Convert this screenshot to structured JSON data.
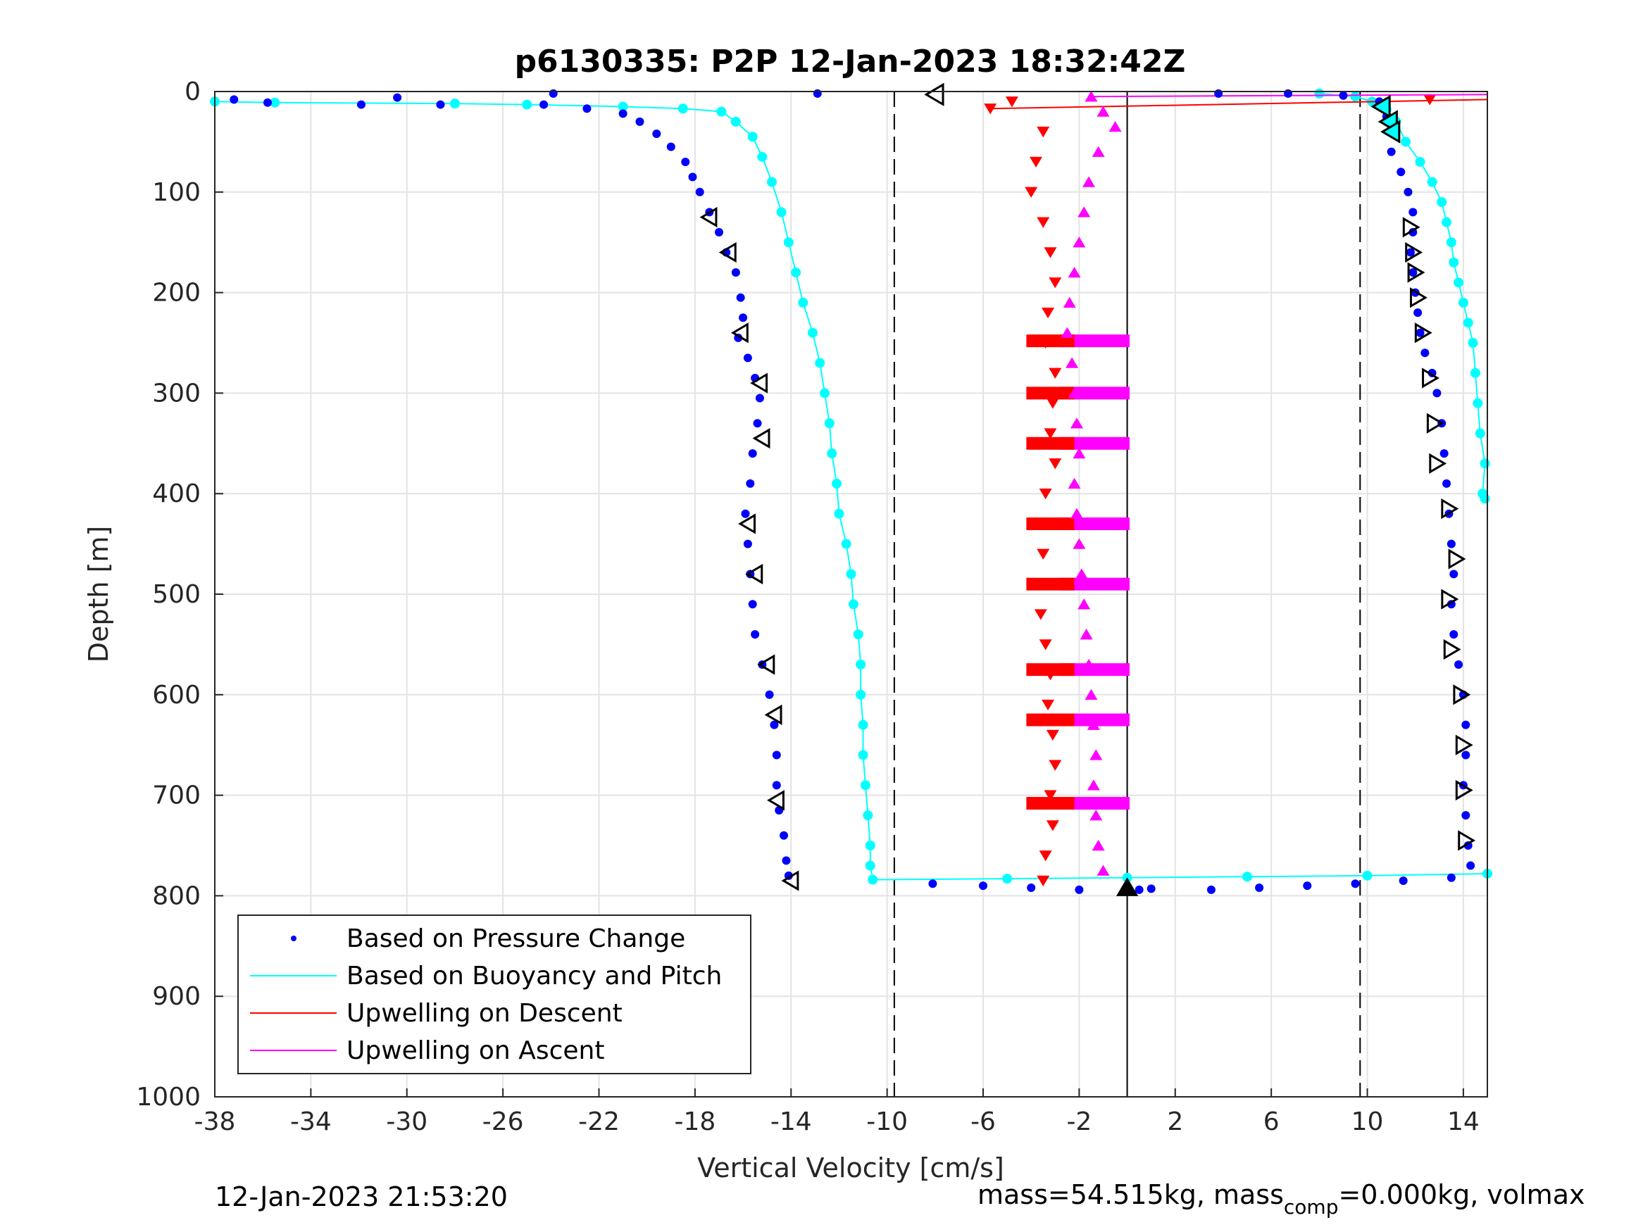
{
  "chart_data": {
    "type": "scatter",
    "title": "p6130335: P2P 12-Jan-2023 18:32:42Z",
    "xlabel": "Vertical Velocity [cm/s]",
    "ylabel": "Depth [m]",
    "xlim": [
      -38,
      15
    ],
    "ylim": [
      0,
      1000
    ],
    "y_reversed": true,
    "grid": true,
    "x_ticks": [
      -38,
      -34,
      -30,
      -26,
      -22,
      -18,
      -14,
      -10,
      -6,
      -2,
      2,
      6,
      10,
      14
    ],
    "x_tick_labels": [
      "-38",
      "-34",
      "-30",
      "-26",
      "-22",
      "-18",
      "-14",
      "-10",
      "-6",
      "-2",
      "2",
      "6",
      "10",
      "14"
    ],
    "y_ticks": [
      0,
      100,
      200,
      300,
      400,
      500,
      600,
      700,
      800,
      900,
      1000
    ],
    "y_tick_labels": [
      "0",
      "100",
      "200",
      "300",
      "400",
      "500",
      "600",
      "700",
      "800",
      "900",
      "1000"
    ],
    "reference_lines": {
      "dashed_x": [
        -9.7,
        9.7
      ],
      "solid_x": [
        0
      ]
    },
    "legend_position": "bottom-left",
    "series": [
      {
        "name": "Based on Pressure Change",
        "color": "#0000ff",
        "marker": "dot",
        "points": [
          [
            -37.2,
            8
          ],
          [
            -35.8,
            11
          ],
          [
            -31.9,
            13
          ],
          [
            -30.4,
            6
          ],
          [
            -28.6,
            13
          ],
          [
            -24.3,
            13
          ],
          [
            -23.9,
            2
          ],
          [
            -22.5,
            17
          ],
          [
            -21.0,
            22
          ],
          [
            -20.3,
            30
          ],
          [
            -19.6,
            42
          ],
          [
            -19.0,
            55
          ],
          [
            -18.4,
            70
          ],
          [
            -18.1,
            85
          ],
          [
            -17.8,
            100
          ],
          [
            -17.4,
            120
          ],
          [
            -17.0,
            140
          ],
          [
            -16.7,
            160
          ],
          [
            -16.3,
            180
          ],
          [
            -16.1,
            205
          ],
          [
            -16.0,
            225
          ],
          [
            -16.2,
            245
          ],
          [
            -15.8,
            265
          ],
          [
            -15.5,
            285
          ],
          [
            -15.3,
            305
          ],
          [
            -15.4,
            330
          ],
          [
            -15.6,
            360
          ],
          [
            -15.7,
            390
          ],
          [
            -15.9,
            420
          ],
          [
            -15.8,
            450
          ],
          [
            -15.7,
            480
          ],
          [
            -15.6,
            510
          ],
          [
            -15.5,
            540
          ],
          [
            -15.2,
            570
          ],
          [
            -14.9,
            600
          ],
          [
            -14.7,
            630
          ],
          [
            -14.6,
            660
          ],
          [
            -14.6,
            690
          ],
          [
            -14.5,
            715
          ],
          [
            -14.3,
            740
          ],
          [
            -14.2,
            765
          ],
          [
            -14.1,
            780
          ],
          [
            -12.9,
            2
          ],
          [
            -8.1,
            788
          ],
          [
            -6.0,
            790
          ],
          [
            -4.0,
            792
          ],
          [
            -2.0,
            794
          ],
          [
            0.5,
            794
          ],
          [
            1.0,
            793
          ],
          [
            3.5,
            794
          ],
          [
            5.5,
            792
          ],
          [
            7.5,
            790
          ],
          [
            9.5,
            788
          ],
          [
            11.5,
            785
          ],
          [
            13.5,
            782
          ],
          [
            3.8,
            2
          ],
          [
            6.7,
            2
          ],
          [
            9.0,
            4
          ],
          [
            10.5,
            10
          ],
          [
            10.8,
            25
          ],
          [
            10.9,
            40
          ],
          [
            11.0,
            60
          ],
          [
            11.4,
            80
          ],
          [
            11.7,
            100
          ],
          [
            11.9,
            120
          ],
          [
            11.9,
            140
          ],
          [
            11.8,
            160
          ],
          [
            11.9,
            180
          ],
          [
            12.0,
            200
          ],
          [
            12.1,
            220
          ],
          [
            12.2,
            240
          ],
          [
            12.4,
            260
          ],
          [
            12.7,
            280
          ],
          [
            12.9,
            300
          ],
          [
            13.1,
            330
          ],
          [
            13.2,
            360
          ],
          [
            13.3,
            390
          ],
          [
            13.4,
            420
          ],
          [
            13.5,
            450
          ],
          [
            13.6,
            480
          ],
          [
            13.5,
            510
          ],
          [
            13.6,
            540
          ],
          [
            13.8,
            570
          ],
          [
            14.0,
            600
          ],
          [
            14.1,
            630
          ],
          [
            14.1,
            660
          ],
          [
            14.0,
            690
          ],
          [
            14.1,
            720
          ],
          [
            14.2,
            750
          ],
          [
            14.3,
            770
          ]
        ]
      },
      {
        "name": "Based on Buoyancy and Pitch",
        "color": "#00ffff",
        "marker": "dot-line",
        "points": [
          [
            -38.0,
            10
          ],
          [
            -35.5,
            11
          ],
          [
            -28.0,
            12
          ],
          [
            -25.0,
            13
          ],
          [
            -21.0,
            15
          ],
          [
            -18.5,
            17
          ],
          [
            -16.9,
            20
          ],
          [
            -16.3,
            30
          ],
          [
            -15.6,
            45
          ],
          [
            -15.2,
            65
          ],
          [
            -14.8,
            90
          ],
          [
            -14.4,
            120
          ],
          [
            -14.1,
            150
          ],
          [
            -13.8,
            180
          ],
          [
            -13.5,
            210
          ],
          [
            -13.1,
            240
          ],
          [
            -12.8,
            270
          ],
          [
            -12.6,
            300
          ],
          [
            -12.4,
            330
          ],
          [
            -12.3,
            360
          ],
          [
            -12.1,
            390
          ],
          [
            -12.0,
            420
          ],
          [
            -11.7,
            450
          ],
          [
            -11.5,
            480
          ],
          [
            -11.4,
            510
          ],
          [
            -11.2,
            540
          ],
          [
            -11.1,
            570
          ],
          [
            -11.1,
            600
          ],
          [
            -11.0,
            630
          ],
          [
            -11.0,
            660
          ],
          [
            -10.9,
            690
          ],
          [
            -10.8,
            720
          ],
          [
            -10.7,
            750
          ],
          [
            -10.7,
            770
          ],
          [
            -10.6,
            784
          ],
          [
            -5.0,
            783
          ],
          [
            0.0,
            782
          ],
          [
            5.0,
            781
          ],
          [
            10.0,
            780
          ],
          [
            15.0,
            778
          ],
          [
            8.0,
            2
          ],
          [
            9.5,
            5
          ],
          [
            10.2,
            10
          ],
          [
            10.8,
            18
          ],
          [
            11.2,
            30
          ],
          [
            11.6,
            50
          ],
          [
            12.2,
            70
          ],
          [
            12.7,
            90
          ],
          [
            13.1,
            110
          ],
          [
            13.3,
            130
          ],
          [
            13.5,
            150
          ],
          [
            13.6,
            170
          ],
          [
            13.8,
            190
          ],
          [
            14.0,
            210
          ],
          [
            14.2,
            230
          ],
          [
            14.4,
            250
          ],
          [
            14.5,
            280
          ],
          [
            14.6,
            310
          ],
          [
            14.7,
            340
          ],
          [
            14.9,
            370
          ],
          [
            14.8,
            400
          ],
          [
            14.9,
            405
          ]
        ]
      },
      {
        "name": "Upwelling on Descent",
        "color": "#ff0000",
        "marker": "triangle-down",
        "points": [
          [
            -5.7,
            17
          ],
          [
            -4.8,
            10
          ],
          [
            -3.5,
            40
          ],
          [
            -3.8,
            70
          ],
          [
            -4.0,
            100
          ],
          [
            -3.5,
            130
          ],
          [
            -3.2,
            160
          ],
          [
            -3.0,
            190
          ],
          [
            -3.3,
            220
          ],
          [
            -3.4,
            250
          ],
          [
            -3.0,
            280
          ],
          [
            -3.1,
            310
          ],
          [
            -3.2,
            340
          ],
          [
            -3.0,
            370
          ],
          [
            -3.4,
            400
          ],
          [
            -3.6,
            430
          ],
          [
            -3.5,
            460
          ],
          [
            -3.8,
            490
          ],
          [
            -3.6,
            520
          ],
          [
            -3.4,
            550
          ],
          [
            -3.2,
            580
          ],
          [
            -3.3,
            610
          ],
          [
            -3.1,
            640
          ],
          [
            -3.0,
            670
          ],
          [
            -3.2,
            700
          ],
          [
            -3.1,
            730
          ],
          [
            -3.4,
            760
          ],
          [
            -3.5,
            785
          ],
          [
            12.6,
            8
          ]
        ]
      },
      {
        "name": "Upwelling on Ascent",
        "color": "#ff00ff",
        "marker": "triangle-up",
        "points": [
          [
            -1.5,
            5
          ],
          [
            -1.0,
            20
          ],
          [
            -0.5,
            35
          ],
          [
            -1.2,
            60
          ],
          [
            -1.6,
            90
          ],
          [
            -1.8,
            120
          ],
          [
            -2.0,
            150
          ],
          [
            -2.2,
            180
          ],
          [
            -2.4,
            210
          ],
          [
            -2.5,
            240
          ],
          [
            -2.3,
            270
          ],
          [
            -2.2,
            300
          ],
          [
            -2.1,
            330
          ],
          [
            -2.0,
            360
          ],
          [
            -2.2,
            390
          ],
          [
            -2.1,
            420
          ],
          [
            -2.0,
            450
          ],
          [
            -1.9,
            480
          ],
          [
            -1.8,
            510
          ],
          [
            -1.7,
            540
          ],
          [
            -1.6,
            570
          ],
          [
            -1.5,
            600
          ],
          [
            -1.4,
            630
          ],
          [
            -1.3,
            660
          ],
          [
            -1.4,
            690
          ],
          [
            -1.3,
            720
          ],
          [
            -1.2,
            750
          ],
          [
            -1.0,
            775
          ]
        ]
      }
    ],
    "wide_bands": [
      {
        "color": "#ff00ff",
        "depths": [
          248,
          300,
          350,
          430,
          490,
          575,
          625,
          708
        ],
        "from": -2.8,
        "to": 0.1
      },
      {
        "color": "#ff0000",
        "depths": [
          248,
          300,
          350,
          430,
          490,
          575,
          625,
          708
        ],
        "from": -4.2,
        "to": -2.2
      }
    ],
    "black_markers": {
      "left": [
        [
          -17.4,
          125
        ],
        [
          -16.6,
          160
        ],
        [
          -16.1,
          240
        ],
        [
          -15.3,
          290
        ],
        [
          -15.2,
          345
        ],
        [
          -15.8,
          430
        ],
        [
          -15.5,
          480
        ],
        [
          -15.0,
          570
        ],
        [
          -14.7,
          620
        ],
        [
          -14.6,
          705
        ],
        [
          -14.0,
          785
        ]
      ],
      "right": [
        [
          11.8,
          135
        ],
        [
          11.9,
          160
        ],
        [
          12.0,
          180
        ],
        [
          12.1,
          205
        ],
        [
          12.3,
          240
        ],
        [
          12.6,
          285
        ],
        [
          12.8,
          330
        ],
        [
          12.9,
          370
        ],
        [
          13.4,
          415
        ],
        [
          13.7,
          465
        ],
        [
          13.4,
          505
        ],
        [
          13.5,
          555
        ],
        [
          13.9,
          600
        ],
        [
          14.0,
          650
        ],
        [
          14.0,
          695
        ],
        [
          14.1,
          745
        ]
      ],
      "top": [
        [
          -8.0,
          3
        ],
        [
          10.6,
          15
        ],
        [
          10.9,
          30
        ],
        [
          11.0,
          40
        ]
      ],
      "bottom": [
        [
          0.0,
          792
        ]
      ]
    }
  },
  "footer": {
    "timestamp": "12-Jan-2023 21:53:20",
    "mass_text_prefix": "mass=54.515kg, mass",
    "mass_text_sub": "comp",
    "mass_text_suffix": "=0.000kg, volmax"
  }
}
